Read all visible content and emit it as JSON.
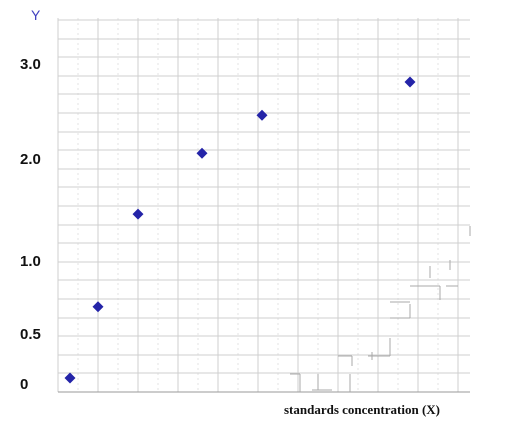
{
  "chart_data": {
    "type": "scatter",
    "title": "",
    "xlabel": "standards concentration (X)",
    "ylabel": "Y",
    "y_tick_labels": [
      "0",
      "0.5",
      "1.0",
      "2.0",
      "3.0"
    ],
    "x_tick_labels": [],
    "grid": true,
    "marker": "diamond",
    "colors": {
      "marker": "#2424a8",
      "grid": "#cfcfcf",
      "grid_minor": "#dddddd"
    },
    "series": [
      {
        "points": [
          {
            "x": 0.3,
            "y": 0.05
          },
          {
            "x": 1.0,
            "y": 0.68
          },
          {
            "x": 2.0,
            "y": 1.45
          },
          {
            "x": 3.6,
            "y": 2.05
          },
          {
            "x": 5.1,
            "y": 2.45
          },
          {
            "x": 8.8,
            "y": 2.8
          }
        ]
      }
    ]
  }
}
